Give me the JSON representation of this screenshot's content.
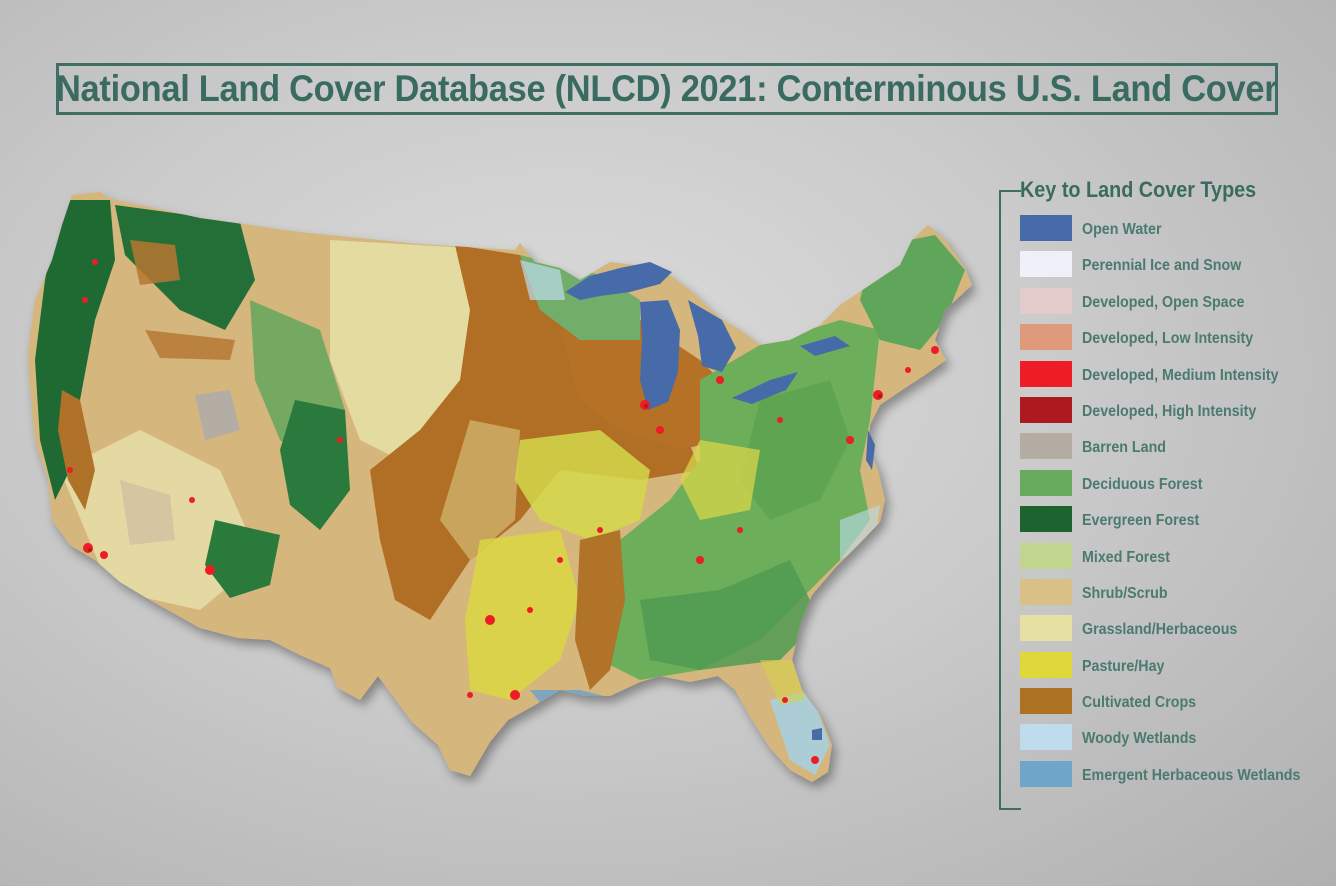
{
  "title": "National Land Cover Database (NLCD) 2021: Conterminous U.S. Land Cover",
  "legend": {
    "title": "Key to Land Cover Types",
    "items": [
      {
        "label": "Open Water",
        "color": "#476ba8",
        "icon": "open-water-swatch"
      },
      {
        "label": "Perennial Ice and Snow",
        "color": "#eef2f8",
        "icon": "perennial-ice-snow-swatch"
      },
      {
        "label": "Developed, Open Space",
        "color": "#e4cbcb",
        "icon": "developed-open-space-swatch"
      },
      {
        "label": "Developed, Low Intensity",
        "color": "#df9a7c",
        "icon": "developed-low-intensity-swatch"
      },
      {
        "label": "Developed, Medium Intensity",
        "color": "#ec1d24",
        "icon": "developed-medium-intensity-swatch"
      },
      {
        "label": "Developed, High Intensity",
        "color": "#ac1a1f",
        "icon": "developed-high-intensity-swatch"
      },
      {
        "label": "Barren Land",
        "color": "#b3ada3",
        "icon": "barren-land-swatch"
      },
      {
        "label": "Deciduous Forest",
        "color": "#68ab5f",
        "icon": "deciduous-forest-swatch"
      },
      {
        "label": "Evergreen Forest",
        "color": "#1c6330",
        "icon": "evergreen-forest-swatch"
      },
      {
        "label": "Mixed Forest",
        "color": "#c2d58f",
        "icon": "mixed-forest-swatch"
      },
      {
        "label": "Shrub/Scrub",
        "color": "#d9c084",
        "icon": "shrub-scrub-swatch"
      },
      {
        "label": "Grassland/Herbaceous",
        "color": "#e6e0a2",
        "icon": "grassland-herbaceous-swatch"
      },
      {
        "label": "Pasture/Hay",
        "color": "#e0d83a",
        "icon": "pasture-hay-swatch"
      },
      {
        "label": "Cultivated Crops",
        "color": "#ad7122",
        "icon": "cultivated-crops-swatch"
      },
      {
        "label": "Woody Wetlands",
        "color": "#bedcec",
        "icon": "woody-wetlands-swatch"
      },
      {
        "label": "Emergent Herbaceous Wetlands",
        "color": "#6ea5c9",
        "icon": "emergent-herbaceous-wetlands-swatch"
      }
    ]
  }
}
